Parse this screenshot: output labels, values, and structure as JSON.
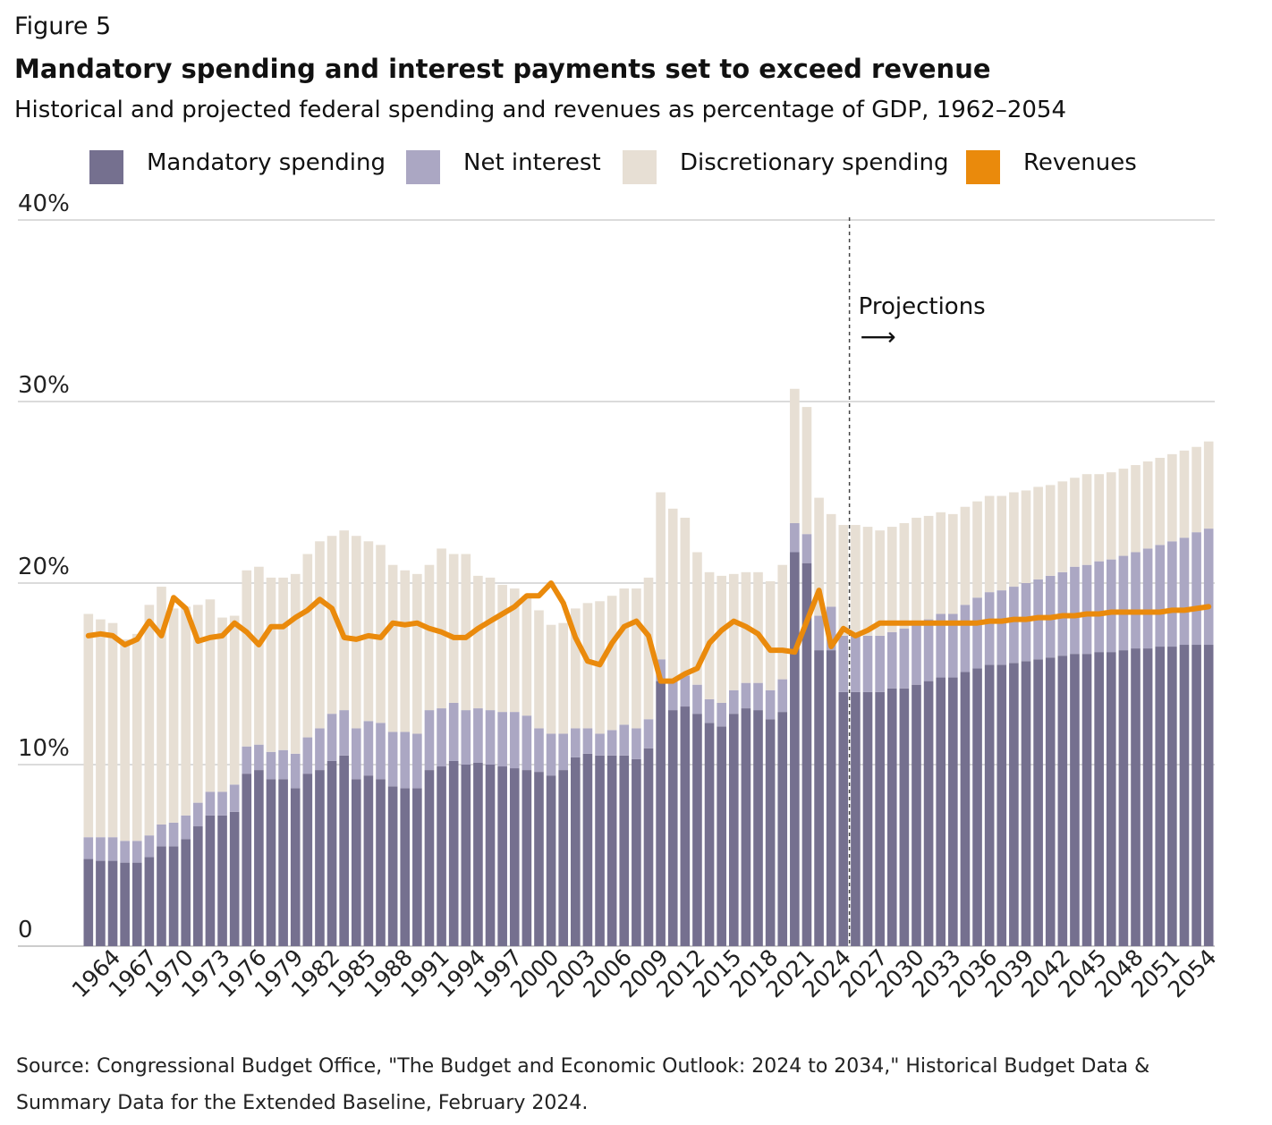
{
  "figure_label": "Figure 5",
  "title": "Mandatory spending and interest payments set to exceed revenue",
  "subtitle": "Historical and projected federal spending and revenues as percentage of GDP, 1962–2054",
  "legend": [
    {
      "label": "Mandatory spending",
      "color": "#75708f"
    },
    {
      "label": "Net interest",
      "color": "#aba7c3"
    },
    {
      "label": "Discretionary spending",
      "color": "#e7dfd4"
    },
    {
      "label": "Revenues",
      "color": "#ea8a0c"
    }
  ],
  "annotation": {
    "text": "Projections",
    "arrow": "⟶"
  },
  "source": "Source: Congressional Budget Office, \"The Budget and Economic Outlook: 2024 to 2034,\" Historical Budget Data & Summary Data for the Extended Baseline, February 2024.",
  "chart_data": {
    "type": "bar",
    "stacked": true,
    "ylim": [
      0,
      40
    ],
    "y_ticks": [
      0,
      10,
      20,
      30,
      40
    ],
    "y_tick_labels": [
      "0",
      "10%",
      "20%",
      "30%",
      "40%"
    ],
    "x_tick_labels": [
      "1964",
      "1967",
      "1970",
      "1973",
      "1976",
      "1979",
      "1982",
      "1985",
      "1988",
      "1991",
      "1994",
      "1997",
      "2000",
      "2003",
      "2006",
      "2009",
      "2012",
      "2015",
      "2018",
      "2021",
      "2024",
      "2027",
      "2030",
      "2033",
      "2036",
      "2039",
      "2042",
      "2045",
      "2048",
      "2051",
      "2054"
    ],
    "projection_start": 2024,
    "grid": true,
    "years": [
      1962,
      1963,
      1964,
      1965,
      1966,
      1967,
      1968,
      1969,
      1970,
      1971,
      1972,
      1973,
      1974,
      1975,
      1976,
      1977,
      1978,
      1979,
      1980,
      1981,
      1982,
      1983,
      1984,
      1985,
      1986,
      1987,
      1988,
      1989,
      1990,
      1991,
      1992,
      1993,
      1994,
      1995,
      1996,
      1997,
      1998,
      1999,
      2000,
      2001,
      2002,
      2003,
      2004,
      2005,
      2006,
      2007,
      2008,
      2009,
      2010,
      2011,
      2012,
      2013,
      2014,
      2015,
      2016,
      2017,
      2018,
      2019,
      2020,
      2021,
      2022,
      2023,
      2024,
      2025,
      2026,
      2027,
      2028,
      2029,
      2030,
      2031,
      2032,
      2033,
      2034,
      2035,
      2036,
      2037,
      2038,
      2039,
      2040,
      2041,
      2042,
      2043,
      2044,
      2045,
      2046,
      2047,
      2048,
      2049,
      2050,
      2051,
      2052,
      2053,
      2054
    ],
    "series": [
      {
        "name": "Mandatory spending",
        "color": "#75708f",
        "values": [
          4.8,
          4.7,
          4.7,
          4.6,
          4.6,
          4.9,
          5.5,
          5.5,
          5.9,
          6.6,
          7.2,
          7.2,
          7.4,
          9.5,
          9.7,
          9.2,
          9.2,
          8.7,
          9.5,
          9.7,
          10.2,
          10.5,
          9.2,
          9.4,
          9.2,
          8.8,
          8.7,
          8.7,
          9.7,
          9.9,
          10.2,
          10.0,
          10.1,
          10.0,
          9.9,
          9.8,
          9.7,
          9.6,
          9.4,
          9.7,
          10.4,
          10.6,
          10.5,
          10.5,
          10.5,
          10.3,
          10.9,
          14.6,
          13.0,
          13.2,
          12.8,
          12.3,
          12.1,
          12.8,
          13.1,
          13.0,
          12.5,
          12.9,
          21.7,
          21.1,
          16.3,
          16.3,
          14.0,
          14.0,
          14.0,
          14.0,
          14.2,
          14.2,
          14.4,
          14.6,
          14.8,
          14.8,
          15.1,
          15.3,
          15.5,
          15.5,
          15.6,
          15.7,
          15.8,
          15.9,
          16.0,
          16.1,
          16.1,
          16.2,
          16.2,
          16.3,
          16.4,
          16.4,
          16.5,
          16.5,
          16.6,
          16.6,
          16.6
        ]
      },
      {
        "name": "Net interest",
        "color": "#aba7c3",
        "values": [
          1.2,
          1.3,
          1.3,
          1.2,
          1.2,
          1.2,
          1.2,
          1.3,
          1.3,
          1.3,
          1.3,
          1.3,
          1.5,
          1.5,
          1.4,
          1.5,
          1.6,
          1.9,
          2.0,
          2.3,
          2.6,
          2.5,
          2.8,
          3.0,
          3.1,
          3.0,
          3.1,
          3.0,
          3.3,
          3.2,
          3.2,
          3.0,
          3.0,
          3.0,
          3.0,
          3.1,
          3.0,
          2.4,
          2.3,
          2.0,
          1.6,
          1.4,
          1.2,
          1.4,
          1.7,
          1.7,
          1.6,
          1.2,
          1.6,
          1.7,
          1.6,
          1.3,
          1.3,
          1.3,
          1.4,
          1.5,
          1.6,
          1.8,
          1.6,
          1.6,
          1.9,
          2.4,
          3.1,
          3.1,
          3.1,
          3.1,
          3.1,
          3.3,
          3.4,
          3.4,
          3.5,
          3.5,
          3.7,
          3.9,
          4.0,
          4.1,
          4.2,
          4.3,
          4.4,
          4.5,
          4.6,
          4.8,
          4.9,
          5.0,
          5.1,
          5.2,
          5.3,
          5.5,
          5.6,
          5.8,
          5.9,
          6.2,
          6.4
        ]
      },
      {
        "name": "Discretionary spending",
        "color": "#e7dfd4",
        "values": [
          12.3,
          12.0,
          11.8,
          11.1,
          11.4,
          12.7,
          13.1,
          11.8,
          11.5,
          10.9,
          10.6,
          9.6,
          9.3,
          9.7,
          9.8,
          9.6,
          9.5,
          9.9,
          10.1,
          10.3,
          9.8,
          9.9,
          10.6,
          9.9,
          9.8,
          9.2,
          8.9,
          8.8,
          8.0,
          8.8,
          8.2,
          8.6,
          7.3,
          7.3,
          7.0,
          6.8,
          6.6,
          6.5,
          6.0,
          6.1,
          6.6,
          6.9,
          7.3,
          7.4,
          7.5,
          7.7,
          7.8,
          9.2,
          9.5,
          8.7,
          7.3,
          7.0,
          7.0,
          6.4,
          6.1,
          6.1,
          6.0,
          6.3,
          7.4,
          7.0,
          6.5,
          5.1,
          6.1,
          6.1,
          6.0,
          5.8,
          5.8,
          5.8,
          5.8,
          5.7,
          5.6,
          5.5,
          5.4,
          5.3,
          5.3,
          5.2,
          5.2,
          5.1,
          5.1,
          5.0,
          5.0,
          4.9,
          5.0,
          4.8,
          4.8,
          4.8,
          4.8,
          4.8,
          4.8,
          4.8,
          4.8,
          4.7,
          4.8
        ]
      },
      {
        "name": "Revenues",
        "type": "line",
        "color": "#ea8a0c",
        "values": [
          17.1,
          17.2,
          17.1,
          16.6,
          16.9,
          17.9,
          17.1,
          19.2,
          18.6,
          16.8,
          17.0,
          17.1,
          17.8,
          17.3,
          16.6,
          17.6,
          17.6,
          18.1,
          18.5,
          19.1,
          18.6,
          17.0,
          16.9,
          17.1,
          17.0,
          17.8,
          17.7,
          17.8,
          17.5,
          17.3,
          17.0,
          17.0,
          17.5,
          17.9,
          18.3,
          18.7,
          19.3,
          19.3,
          20.0,
          18.9,
          17.0,
          15.7,
          15.5,
          16.7,
          17.6,
          17.9,
          17.1,
          14.6,
          14.6,
          15.0,
          15.3,
          16.7,
          17.4,
          17.9,
          17.6,
          17.2,
          16.3,
          16.3,
          16.2,
          17.9,
          19.6,
          16.5,
          17.5,
          17.1,
          17.4,
          17.8,
          17.8,
          17.8,
          17.8,
          17.8,
          17.8,
          17.8,
          17.8,
          17.8,
          17.9,
          17.9,
          18.0,
          18.0,
          18.1,
          18.1,
          18.2,
          18.2,
          18.3,
          18.3,
          18.4,
          18.4,
          18.4,
          18.4,
          18.4,
          18.5,
          18.5,
          18.6,
          18.7
        ]
      }
    ]
  }
}
